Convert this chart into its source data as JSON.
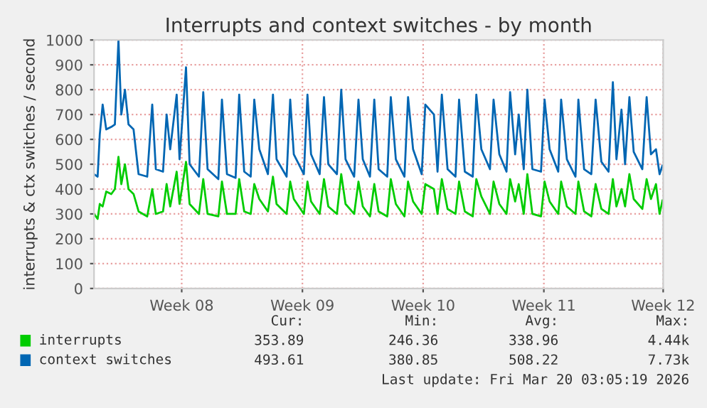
{
  "chart_data": {
    "type": "line",
    "title": "Interrupts and context switches - by month",
    "ylabel": "interrupts & ctx switches / second",
    "x": [
      "2026-02-15T00:00",
      "2026-02-15T05:00",
      "2026-02-15T08:00",
      "2026-02-15T12:00",
      "2026-02-15T17:00",
      "2026-02-16T00:00",
      "2026-02-16T05:00",
      "2026-02-16T10:00",
      "2026-02-16T14:00",
      "2026-02-16T19:00",
      "2026-02-17T00:00",
      "2026-02-17T07:00",
      "2026-02-17T14:00",
      "2026-02-18T02:00",
      "2026-02-18T09:00",
      "2026-02-18T14:00",
      "2026-02-19T00:00",
      "2026-02-19T05:00",
      "2026-02-19T10:00",
      "2026-02-19T19:00",
      "2026-02-19T23:00",
      "2026-02-20T08:00",
      "2026-02-20T13:00",
      "2026-02-21T02:00",
      "2026-02-21T08:00",
      "2026-02-21T14:00",
      "2026-02-22T05:00",
      "2026-02-22T10:00",
      "2026-02-22T17:00",
      "2026-02-23T05:00",
      "2026-02-23T10:00",
      "2026-02-23T17:00",
      "2026-02-24T02:00",
      "2026-02-24T07:00",
      "2026-02-24T14:00",
      "2026-02-25T02:00",
      "2026-02-25T09:00",
      "2026-02-25T14:00",
      "2026-02-26T04:00",
      "2026-02-26T09:00",
      "2026-02-26T14:00",
      "2026-02-27T04:00",
      "2026-02-27T09:00",
      "2026-02-27T14:00",
      "2026-02-28T02:00",
      "2026-02-28T08:00",
      "2026-02-28T14:00",
      "2026-03-01T02:00",
      "2026-03-01T08:00",
      "2026-03-01T14:00",
      "2026-03-02T02:00",
      "2026-03-02T08:00",
      "2026-03-02T14:00",
      "2026-03-03T00:00",
      "2026-03-03T06:00",
      "2026-03-03T12:00",
      "2026-03-04T00:00",
      "2026-03-04T05:00",
      "2026-03-04T12:00",
      "2026-03-05T00:00",
      "2026-03-05T05:00",
      "2026-03-05T12:00",
      "2026-03-06T00:00",
      "2026-03-06T05:00",
      "2026-03-06T17:00",
      "2026-03-06T22:00",
      "2026-03-07T04:00",
      "2026-03-07T12:00",
      "2026-03-07T23:00",
      "2026-03-08T04:00",
      "2026-03-08T12:00",
      "2026-03-08T23:00",
      "2026-03-09T04:00",
      "2026-03-09T11:00",
      "2026-03-09T23:00",
      "2026-03-10T04:00",
      "2026-03-10T12:00",
      "2026-03-10T22:00",
      "2026-03-11T03:00",
      "2026-03-11T10:00",
      "2026-03-11T15:00",
      "2026-03-11T22:00",
      "2026-03-12T03:00",
      "2026-03-12T10:00",
      "2026-03-12T22:00",
      "2026-03-13T03:00",
      "2026-03-13T10:00",
      "2026-03-13T22:00",
      "2026-03-14T02:00",
      "2026-03-14T10:00",
      "2026-03-14T22:00",
      "2026-03-15T02:00",
      "2026-03-15T10:00",
      "2026-03-15T20:00",
      "2026-03-16T02:00",
      "2026-03-16T10:00",
      "2026-03-16T20:00",
      "2026-03-17T02:00",
      "2026-03-17T07:00",
      "2026-03-17T14:00",
      "2026-03-17T19:00",
      "2026-03-18T01:00",
      "2026-03-18T07:00",
      "2026-03-18T19:00",
      "2026-03-19T01:00",
      "2026-03-19T07:00",
      "2026-03-19T14:00",
      "2026-03-19T19:00",
      "2026-03-19T23:00"
    ],
    "series": [
      {
        "name": "interrupts",
        "color": "#00cc00",
        "values": [
          300,
          280,
          340,
          330,
          390,
          380,
          400,
          530,
          420,
          500,
          400,
          380,
          310,
          290,
          400,
          300,
          310,
          420,
          330,
          470,
          340,
          510,
          340,
          300,
          440,
          300,
          290,
          430,
          300,
          300,
          440,
          310,
          300,
          420,
          360,
          310,
          450,
          340,
          300,
          430,
          360,
          300,
          430,
          350,
          300,
          440,
          330,
          300,
          460,
          340,
          300,
          430,
          330,
          290,
          420,
          310,
          290,
          440,
          340,
          290,
          430,
          350,
          300,
          420,
          400,
          300,
          440,
          320,
          300,
          430,
          310,
          290,
          440,
          370,
          300,
          430,
          340,
          300,
          440,
          350,
          420,
          300,
          460,
          300,
          290,
          430,
          350,
          300,
          430,
          330,
          300,
          430,
          310,
          290,
          420,
          320,
          300,
          440,
          330,
          400,
          330,
          460,
          360,
          320,
          440,
          360,
          420,
          300,
          354
        ]
      },
      {
        "name": "context switches",
        "color": "#0066b3",
        "values": [
          460,
          450,
          620,
          740,
          640,
          650,
          660,
          1000,
          700,
          800,
          660,
          640,
          460,
          450,
          740,
          480,
          470,
          700,
          560,
          780,
          520,
          890,
          500,
          450,
          790,
          480,
          440,
          760,
          460,
          445,
          780,
          470,
          450,
          760,
          560,
          460,
          780,
          520,
          450,
          760,
          540,
          460,
          780,
          540,
          460,
          770,
          500,
          460,
          800,
          520,
          450,
          760,
          520,
          450,
          760,
          480,
          450,
          770,
          520,
          450,
          770,
          560,
          460,
          740,
          700,
          470,
          780,
          480,
          450,
          760,
          470,
          450,
          780,
          560,
          480,
          760,
          540,
          470,
          790,
          540,
          700,
          480,
          800,
          480,
          470,
          760,
          560,
          470,
          760,
          520,
          450,
          760,
          480,
          460,
          760,
          510,
          470,
          830,
          520,
          720,
          500,
          770,
          550,
          480,
          770,
          540,
          560,
          460,
          494
        ]
      }
    ],
    "xlim": [
      "2026-02-15T00:00",
      "2026-03-20T00:00"
    ],
    "xticks": [
      {
        "value": "2026-02-20T02:00",
        "label": "Week 08"
      },
      {
        "value": "2026-02-27T02:00",
        "label": "Week 09"
      },
      {
        "value": "2026-03-06T02:00",
        "label": "Week 10"
      },
      {
        "value": "2026-03-13T02:00",
        "label": "Week 11"
      },
      {
        "value": "2026-03-20T00:00",
        "label": "Week 12"
      }
    ],
    "ylim": [
      0,
      1000
    ],
    "yticks": [
      0,
      100,
      200,
      300,
      400,
      500,
      600,
      700,
      800,
      900,
      1000
    ],
    "grid": true,
    "legend": "bottom",
    "annotations": [
      "Cur:",
      "Min:",
      "Avg:",
      "Max:",
      "353.89",
      "246.36",
      "338.96",
      "4.44k",
      "493.61",
      "380.85",
      "508.22",
      "7.73k",
      "Last update: Fri Mar 20 03:05:19 2026"
    ]
  }
}
